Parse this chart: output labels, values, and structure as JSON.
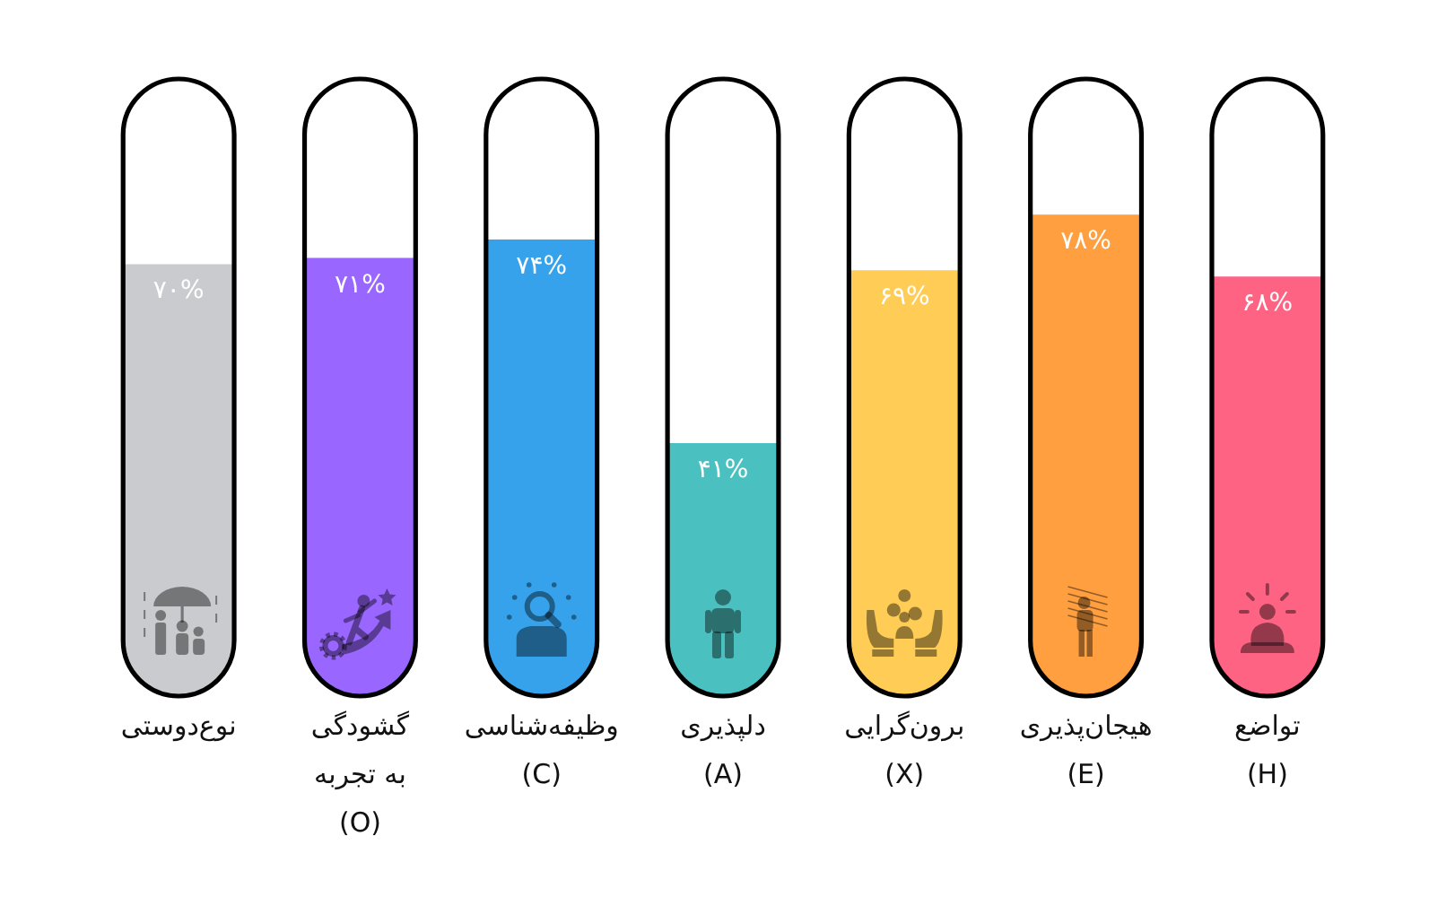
{
  "chart_data": {
    "type": "bar",
    "categories": [
      "نوع‌دوستی",
      "گشودگی\nبه تجربه\n(O)",
      "وظیفه‌شناسی\n(C)",
      "دلپذیری\n(A)",
      "برون‌گرایی\n(X)",
      "هیجان‌پذیری\n(E)",
      "تواضع\n(H)"
    ],
    "values": [
      70,
      71,
      74,
      41,
      69,
      78,
      68
    ],
    "colors": [
      "#c9cbcf",
      "#9966ff",
      "#36a2eb",
      "#4bc0c0",
      "#ffcd56",
      "#ff9f40",
      "#ff6384"
    ],
    "value_labels": [
      "۷۰%",
      "۷۱%",
      "۷۴%",
      "۴۱%",
      "۶۹%",
      "۷۸%",
      "۶۸%"
    ],
    "ylim": [
      0,
      100
    ]
  }
}
